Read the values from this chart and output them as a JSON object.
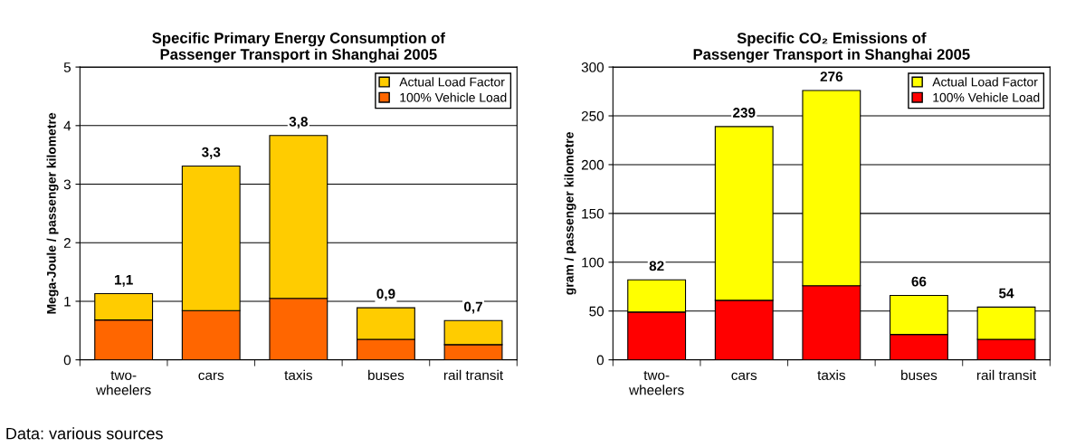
{
  "chart_data": [
    {
      "type": "bar",
      "stacked": true,
      "title": "Specific Primary Energy Consumption of\nPassenger Transport in Shanghai 2005",
      "ylabel": "Mega-Joule / passenger kilometre",
      "categories": [
        "two-\nwheelers",
        "cars",
        "taxis",
        "buses",
        "rail transit"
      ],
      "series": [
        {
          "name": "100% Vehicle Load",
          "color": "#ff6600",
          "values": [
            0.68,
            0.84,
            1.05,
            0.35,
            0.26
          ]
        },
        {
          "name": "Actual Load Factor",
          "color": "#ffcc00",
          "values": [
            0.45,
            2.47,
            2.78,
            0.54,
            0.41
          ]
        }
      ],
      "totals": [
        "1,1",
        "3,3",
        "3,8",
        "0,9",
        "0,7"
      ],
      "ylim": [
        0,
        5
      ],
      "yticks": [
        0,
        1,
        2,
        3,
        4,
        5
      ],
      "grid": "y",
      "legend": "top right",
      "annotations": [
        "Data: various sources"
      ]
    },
    {
      "type": "bar",
      "stacked": true,
      "title": "Specific CO₂ Emissions of\nPassenger Transport in Shanghai 2005",
      "ylabel": "gram / passenger kilometre",
      "categories": [
        "two-\nwheelers",
        "cars",
        "taxis",
        "buses",
        "rail transit"
      ],
      "series": [
        {
          "name": "100% Vehicle Load",
          "color": "#ff0000",
          "values": [
            49,
            61,
            76,
            26,
            21
          ]
        },
        {
          "name": "Actual Load Factor",
          "color": "#ffff00",
          "values": [
            33,
            178,
            200,
            40,
            33
          ]
        }
      ],
      "totals": [
        "82",
        "239",
        "276",
        "66",
        "54"
      ],
      "ylim": [
        0,
        300
      ],
      "yticks": [
        0,
        50,
        100,
        150,
        200,
        250,
        300
      ],
      "grid": "y",
      "legend": "top right"
    }
  ]
}
